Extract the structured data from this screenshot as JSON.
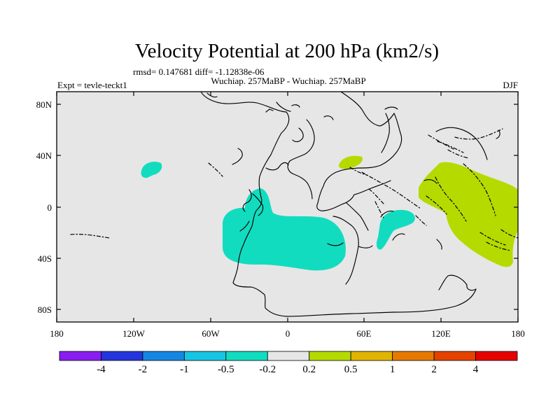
{
  "title": "Velocity Potential at 200 hPa (km2/s)",
  "stats_line": "rmsd= 0.147681 diff= -1.12838e-06",
  "subtitle": "Wuchiap. 257MaBP - Wuchiap. 257MaBP",
  "expt_label": "Expt = tevle-teckt1",
  "season_label": "DJF",
  "x_ticks": [
    "180",
    "120W",
    "60W",
    "0",
    "60E",
    "120E",
    "180"
  ],
  "y_ticks": [
    "80N",
    "40N",
    "0",
    "40S",
    "80S"
  ],
  "colorbar": {
    "labels": [
      "-4",
      "-2",
      "-1",
      "-0.5",
      "-0.2",
      "0.2",
      "0.5",
      "1",
      "2",
      "4"
    ],
    "colors": [
      "#8a1ef0",
      "#2535dc",
      "#1587e3",
      "#17c5e3",
      "#12dcbf",
      "#e6e6e6",
      "#b5da00",
      "#e0b400",
      "#e67a00",
      "#e54200",
      "#e60000"
    ]
  },
  "colors": {
    "land_fill": "#e6e6e6",
    "negative_anomaly": "#12dcbf",
    "positive_anomaly": "#b5da00"
  }
}
